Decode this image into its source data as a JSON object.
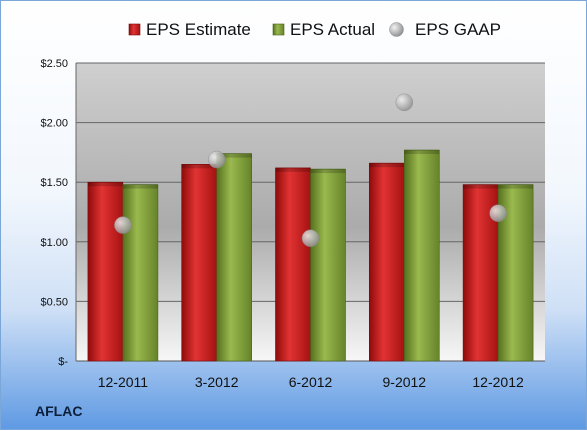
{
  "company_label": "AFLAC",
  "chart_data": {
    "type": "bar",
    "title": "",
    "xlabel": "",
    "ylabel": "",
    "categories": [
      "12-2011",
      "3-2012",
      "6-2012",
      "9-2012",
      "12-2012"
    ],
    "series": [
      {
        "name": "EPS Estimate",
        "kind": "bar",
        "color": "#cc1f1f",
        "values": [
          1.5,
          1.65,
          1.62,
          1.66,
          1.48
        ]
      },
      {
        "name": "EPS Actual",
        "kind": "bar",
        "color": "#7f9e3a",
        "values": [
          1.48,
          1.74,
          1.61,
          1.77,
          1.48
        ]
      },
      {
        "name": "EPS GAAP",
        "kind": "scatter",
        "color": "#b9b9b9",
        "values": [
          1.14,
          1.69,
          1.03,
          2.17,
          1.24
        ]
      }
    ],
    "y_ticks": [
      {
        "value": 0,
        "label": "$-"
      },
      {
        "value": 0.5,
        "label": "$0.50"
      },
      {
        "value": 1.0,
        "label": "$1.00"
      },
      {
        "value": 1.5,
        "label": "$1.50"
      },
      {
        "value": 2.0,
        "label": "$2.00"
      },
      {
        "value": 2.5,
        "label": "$2.50"
      }
    ],
    "ylim": [
      0,
      2.5
    ],
    "grid": true,
    "legend_position": "top"
  }
}
